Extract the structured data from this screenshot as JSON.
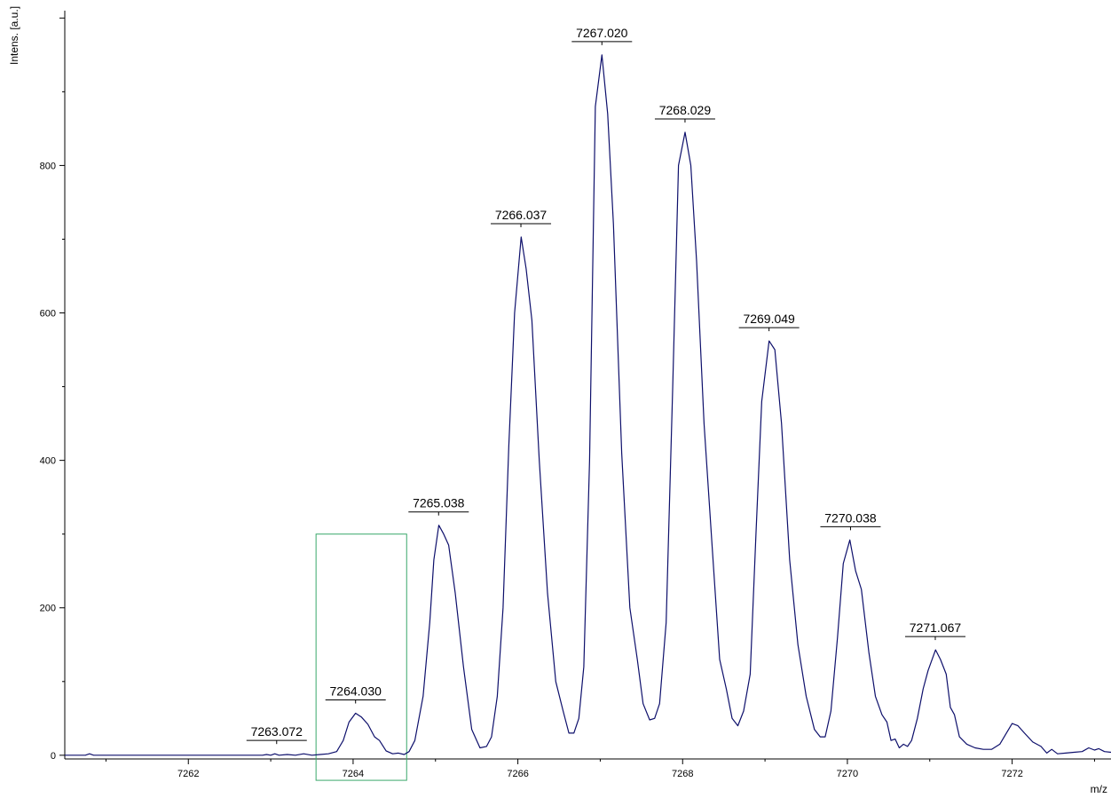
{
  "chart_data": {
    "type": "line",
    "xlabel": "m/z",
    "ylabel": "Intens. [a.u.]",
    "xlim": [
      7260.5,
      7273.2
    ],
    "ylim": [
      -5,
      1010
    ],
    "x_ticks": [
      7262,
      7264,
      7266,
      7268,
      7270,
      7272
    ],
    "y_ticks": [
      0,
      200,
      400,
      600,
      800
    ],
    "grid": false,
    "series": [
      {
        "color": "#0d0f6b",
        "points": [
          [
            7260.5,
            0
          ],
          [
            7260.75,
            0
          ],
          [
            7260.8,
            2
          ],
          [
            7260.85,
            0
          ],
          [
            7261.5,
            0
          ],
          [
            7262.5,
            0
          ],
          [
            7262.9,
            0
          ],
          [
            7262.95,
            1
          ],
          [
            7263.0,
            0
          ],
          [
            7263.05,
            2
          ],
          [
            7263.1,
            0
          ],
          [
            7263.2,
            1
          ],
          [
            7263.3,
            0
          ],
          [
            7263.4,
            2
          ],
          [
            7263.5,
            0
          ],
          [
            7263.6,
            1
          ],
          [
            7263.7,
            2
          ],
          [
            7263.8,
            5
          ],
          [
            7263.88,
            20
          ],
          [
            7263.95,
            45
          ],
          [
            7264.03,
            57
          ],
          [
            7264.1,
            52
          ],
          [
            7264.18,
            42
          ],
          [
            7264.26,
            25
          ],
          [
            7264.32,
            20
          ],
          [
            7264.4,
            6
          ],
          [
            7264.48,
            2
          ],
          [
            7264.55,
            3
          ],
          [
            7264.62,
            1
          ],
          [
            7264.68,
            5
          ],
          [
            7264.75,
            20
          ],
          [
            7264.85,
            80
          ],
          [
            7264.93,
            180
          ],
          [
            7264.98,
            265
          ],
          [
            7265.04,
            312
          ],
          [
            7265.1,
            300
          ],
          [
            7265.16,
            285
          ],
          [
            7265.24,
            220
          ],
          [
            7265.34,
            120
          ],
          [
            7265.44,
            35
          ],
          [
            7265.54,
            10
          ],
          [
            7265.62,
            12
          ],
          [
            7265.68,
            25
          ],
          [
            7265.75,
            80
          ],
          [
            7265.82,
            200
          ],
          [
            7265.89,
            420
          ],
          [
            7265.96,
            600
          ],
          [
            7266.04,
            703
          ],
          [
            7266.1,
            660
          ],
          [
            7266.17,
            590
          ],
          [
            7266.26,
            400
          ],
          [
            7266.36,
            220
          ],
          [
            7266.46,
            100
          ],
          [
            7266.55,
            60
          ],
          [
            7266.62,
            30
          ],
          [
            7266.68,
            30
          ],
          [
            7266.74,
            50
          ],
          [
            7266.8,
            120
          ],
          [
            7266.87,
            400
          ],
          [
            7266.94,
            880
          ],
          [
            7267.02,
            950
          ],
          [
            7267.09,
            870
          ],
          [
            7267.16,
            720
          ],
          [
            7267.26,
            410
          ],
          [
            7267.36,
            200
          ],
          [
            7267.45,
            130
          ],
          [
            7267.52,
            70
          ],
          [
            7267.6,
            48
          ],
          [
            7267.66,
            50
          ],
          [
            7267.72,
            70
          ],
          [
            7267.8,
            180
          ],
          [
            7267.88,
            500
          ],
          [
            7267.95,
            800
          ],
          [
            7268.03,
            845
          ],
          [
            7268.1,
            800
          ],
          [
            7268.17,
            670
          ],
          [
            7268.26,
            450
          ],
          [
            7268.36,
            280
          ],
          [
            7268.45,
            130
          ],
          [
            7268.53,
            90
          ],
          [
            7268.6,
            50
          ],
          [
            7268.67,
            40
          ],
          [
            7268.74,
            60
          ],
          [
            7268.82,
            110
          ],
          [
            7268.89,
            300
          ],
          [
            7268.96,
            480
          ],
          [
            7269.05,
            562
          ],
          [
            7269.12,
            550
          ],
          [
            7269.2,
            450
          ],
          [
            7269.3,
            265
          ],
          [
            7269.4,
            150
          ],
          [
            7269.5,
            80
          ],
          [
            7269.6,
            35
          ],
          [
            7269.67,
            25
          ],
          [
            7269.73,
            25
          ],
          [
            7269.8,
            60
          ],
          [
            7269.88,
            160
          ],
          [
            7269.95,
            260
          ],
          [
            7270.03,
            292
          ],
          [
            7270.1,
            250
          ],
          [
            7270.17,
            225
          ],
          [
            7270.26,
            140
          ],
          [
            7270.34,
            80
          ],
          [
            7270.42,
            55
          ],
          [
            7270.48,
            45
          ],
          [
            7270.53,
            20
          ],
          [
            7270.58,
            22
          ],
          [
            7270.63,
            10
          ],
          [
            7270.68,
            15
          ],
          [
            7270.73,
            12
          ],
          [
            7270.78,
            20
          ],
          [
            7270.85,
            50
          ],
          [
            7270.92,
            90
          ],
          [
            7270.98,
            115
          ],
          [
            7271.07,
            143
          ],
          [
            7271.13,
            130
          ],
          [
            7271.2,
            110
          ],
          [
            7271.25,
            65
          ],
          [
            7271.3,
            55
          ],
          [
            7271.36,
            25
          ],
          [
            7271.45,
            15
          ],
          [
            7271.55,
            10
          ],
          [
            7271.65,
            8
          ],
          [
            7271.75,
            8
          ],
          [
            7271.85,
            15
          ],
          [
            7271.93,
            30
          ],
          [
            7272.0,
            43
          ],
          [
            7272.07,
            40
          ],
          [
            7272.15,
            30
          ],
          [
            7272.25,
            18
          ],
          [
            7272.35,
            12
          ],
          [
            7272.42,
            3
          ],
          [
            7272.48,
            8
          ],
          [
            7272.55,
            2
          ],
          [
            7272.65,
            3
          ],
          [
            7272.75,
            4
          ],
          [
            7272.85,
            5
          ],
          [
            7272.93,
            10
          ],
          [
            7273.0,
            7
          ],
          [
            7273.05,
            9
          ],
          [
            7273.12,
            5
          ],
          [
            7273.2,
            4
          ]
        ]
      }
    ],
    "peak_labels": [
      {
        "text": "7263.072",
        "x": 7263.072,
        "y": 2
      },
      {
        "text": "7264.030",
        "x": 7264.03,
        "y": 57
      },
      {
        "text": "7265.038",
        "x": 7265.038,
        "y": 312
      },
      {
        "text": "7266.037",
        "x": 7266.037,
        "y": 703
      },
      {
        "text": "7267.020",
        "x": 7267.02,
        "y": 950
      },
      {
        "text": "7268.029",
        "x": 7268.029,
        "y": 845
      },
      {
        "text": "7269.049",
        "x": 7269.049,
        "y": 562
      },
      {
        "text": "7270.038",
        "x": 7270.038,
        "y": 292
      },
      {
        "text": "7271.067",
        "x": 7271.067,
        "y": 143
      }
    ],
    "highlight_box": {
      "x0": 7263.55,
      "x1": 7264.65,
      "y0": -34,
      "y1": 300,
      "color": "#3aa86a"
    }
  }
}
